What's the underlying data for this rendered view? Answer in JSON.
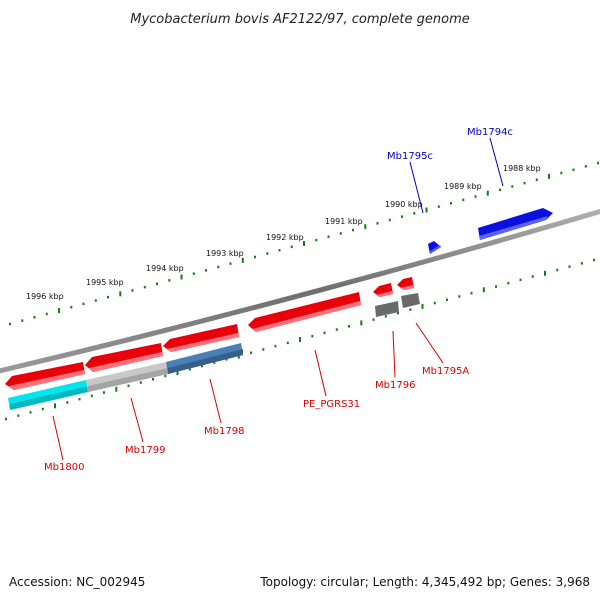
{
  "title": "Mycobacterium bovis AF2122/97, complete genome",
  "footer": {
    "accession": "Accession: NC_002945",
    "summary": "Topology: circular; Length: 4,345,492 bp; Genes: 3,968"
  },
  "colors": {
    "backbone": "#777777",
    "ticks": "#1a7a1a",
    "forward_gene": "#e8000b",
    "reverse_gene": "#0a10e0",
    "forward_label": "#d60000",
    "reverse_label": "#0000c8",
    "cds_cyan": "#00e5ee",
    "cds_grey": "#c8c8c8",
    "cds_steel": "#4a7fb5",
    "cds_dark": "#6a6a6a"
  },
  "scale": {
    "tick_labels": [
      "1996 kbp",
      "1995 kbp",
      "1994 kbp",
      "1993 kbp",
      "1992 kbp",
      "1991 kbp",
      "1990 kbp",
      "1989 kbp",
      "1988 kbp"
    ]
  },
  "genes": [
    {
      "name": "Mb1800",
      "strand": "forward"
    },
    {
      "name": "Mb1799",
      "strand": "forward"
    },
    {
      "name": "Mb1798",
      "strand": "forward"
    },
    {
      "name": "PE_PGRS31",
      "strand": "forward"
    },
    {
      "name": "Mb1796",
      "strand": "forward"
    },
    {
      "name": "Mb1795A",
      "strand": "forward"
    },
    {
      "name": "Mb1795c",
      "strand": "reverse"
    },
    {
      "name": "Mb1794c",
      "strand": "reverse"
    }
  ]
}
